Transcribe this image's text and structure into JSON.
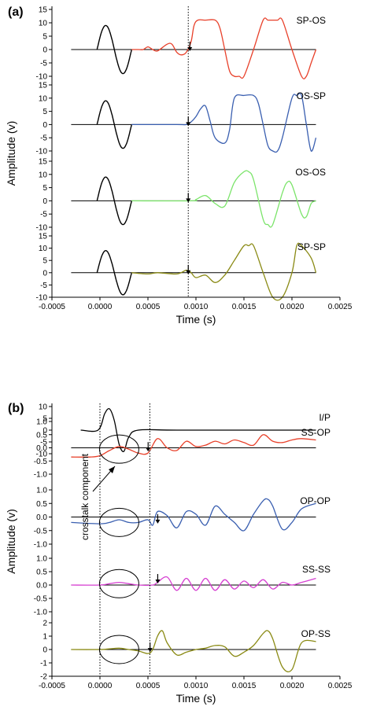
{
  "chart_data": [
    {
      "type": "line",
      "panel": "(a)",
      "xlabel": "Time (s)",
      "ylabel": "Amplitude (v)",
      "xlim": [
        -0.0005,
        0.0025
      ],
      "x_ticks": [
        "-0.0005",
        "0.0000",
        "0.0005",
        "0.0010",
        "0.0015",
        "0.0020",
        "0.0025"
      ],
      "marker_time": 0.00092,
      "subplots": [
        {
          "label": "SP-OS",
          "color": "#e8402a",
          "ylim": [
            -10,
            15
          ],
          "y_ticks": [
            "15",
            "10",
            "5",
            "0",
            "-5",
            "-10"
          ],
          "input_pulse": {
            "start": -3e-05,
            "end": 0.00033,
            "peak": 9,
            "trough": -9
          },
          "x": [
            -0.0003,
            0.00033,
            0.0004,
            0.00045,
            0.0005,
            0.00055,
            0.0006,
            0.0007,
            0.00075,
            0.0008,
            0.00085,
            0.0009,
            0.00095,
            0.00098,
            0.00102,
            0.0011,
            0.0012,
            0.00125,
            0.0013,
            0.00135,
            0.0014,
            0.00145,
            0.0015,
            0.0016,
            0.0017,
            0.00175,
            0.0018,
            0.00185,
            0.0019,
            0.002,
            0.0021,
            0.00215,
            0.0022,
            0.00225
          ],
          "y": [
            0,
            0,
            0,
            0,
            1,
            0,
            -0.5,
            2,
            2,
            -1,
            -2,
            -1,
            3,
            9,
            11,
            11,
            11,
            8,
            0,
            -8,
            -10,
            -10,
            -10,
            0,
            11,
            11,
            11,
            11,
            11,
            0,
            -10,
            -10,
            -5,
            0
          ]
        },
        {
          "label": "OS-SP",
          "color": "#3a5fb0",
          "ylim": [
            -10,
            15
          ],
          "y_ticks": [
            "15",
            "10",
            "5",
            "0",
            "-5",
            "-10"
          ],
          "input_pulse": {
            "start": -3e-05,
            "end": 0.00033,
            "peak": 9,
            "trough": -9
          },
          "x": [
            -0.0003,
            0.00033,
            0.0008,
            0.0009,
            0.00095,
            0.001,
            0.00105,
            0.0011,
            0.00115,
            0.0012,
            0.0013,
            0.00135,
            0.0014,
            0.0015,
            0.0016,
            0.00165,
            0.0017,
            0.00175,
            0.0018,
            0.00185,
            0.0019,
            0.002,
            0.00205,
            0.0021,
            0.00215,
            0.0022,
            0.00225
          ],
          "y": [
            0,
            0,
            0,
            0,
            1,
            3,
            6,
            7,
            1,
            -5,
            -7,
            -2,
            10,
            11,
            11,
            8,
            0,
            -8,
            -10,
            -10,
            -5,
            10,
            11,
            11,
            0,
            -10,
            -5
          ]
        },
        {
          "label": "OS-OS",
          "color": "#7be46a",
          "ylim": [
            -10,
            15
          ],
          "y_ticks": [
            "15",
            "10",
            "5",
            "0",
            "-5",
            "-10"
          ],
          "input_pulse": {
            "start": -3e-05,
            "end": 0.00033,
            "peak": 9,
            "trough": -9
          },
          "x": [
            -0.0003,
            0.00033,
            0.00095,
            0.001,
            0.0011,
            0.0012,
            0.0013,
            0.0014,
            0.0015,
            0.00155,
            0.0016,
            0.0017,
            0.00175,
            0.0018,
            0.0019,
            0.00195,
            0.002,
            0.0021,
            0.00215,
            0.0022,
            0.00225
          ],
          "y": [
            0,
            0,
            0,
            0.5,
            2,
            -1,
            -2,
            7,
            11,
            11,
            8,
            -7,
            -9,
            -9,
            3,
            7,
            6,
            -5,
            -6,
            -1,
            0
          ]
        },
        {
          "label": "SP-SP",
          "color": "#8a8a14",
          "ylim": [
            -10,
            15
          ],
          "y_ticks": [
            "15",
            "10",
            "5",
            "0",
            "-5",
            "-10"
          ],
          "input_pulse": {
            "start": -3e-05,
            "end": 0.00033,
            "peak": 9,
            "trough": -9
          },
          "x": [
            -0.0003,
            0.00033,
            0.0005,
            0.0006,
            0.0008,
            0.0009,
            0.00095,
            0.001,
            0.0011,
            0.0012,
            0.0013,
            0.0014,
            0.0015,
            0.00155,
            0.0016,
            0.0017,
            0.0018,
            0.0019,
            0.002,
            0.00205,
            0.0021,
            0.0022,
            0.00225
          ],
          "y": [
            0,
            0,
            -0.5,
            0,
            -0.5,
            1,
            0,
            -2,
            -1,
            -4,
            -1,
            5,
            11,
            11,
            11,
            0,
            -10,
            -10,
            0,
            11,
            11,
            6,
            0
          ]
        }
      ]
    },
    {
      "type": "line",
      "panel": "(b)",
      "xlabel": "Time (s)",
      "ylabel": "Amplitude (v)",
      "xlim": [
        -0.0005,
        0.0025
      ],
      "x_ticks": [
        "-0.0005",
        "0.0000",
        "0.0005",
        "0.0010",
        "0.0015",
        "0.0020",
        "0.0025"
      ],
      "marker_times": [
        0.0,
        0.00052
      ],
      "annotation": "crosstalk component",
      "subplots": [
        {
          "label": "I/P",
          "color": "#000000",
          "ylim": [
            -10,
            10
          ],
          "y_ticks": [
            "10",
            "5",
            "0",
            "-5",
            "-10"
          ],
          "x": [
            -0.0002,
            -2e-05,
            5e-05,
            0.0001,
            0.00015,
            0.0002,
            0.00025,
            0.0003,
            0.0004,
            0.0008,
            0.0018,
            0.00225
          ],
          "y": [
            0,
            0,
            7,
            9,
            4,
            -6,
            -9,
            -3,
            0,
            0,
            0,
            0
          ]
        },
        {
          "label": "SS-OP",
          "color": "#e8402a",
          "ylim": [
            -1.0,
            1.0
          ],
          "y_ticks": [
            "1.0",
            "0.5",
            "0.0",
            "-0.5",
            "-1.0"
          ],
          "x": [
            -0.0003,
            -0.0001,
            0.0,
            0.0001,
            0.0002,
            0.0003,
            0.0004,
            0.0005,
            0.0006,
            0.0007,
            0.0008,
            0.0009,
            0.001,
            0.0011,
            0.0012,
            0.0013,
            0.0014,
            0.0015,
            0.0016,
            0.0017,
            0.0018,
            0.0019,
            0.002,
            0.0021,
            0.00225
          ],
          "y": [
            -0.35,
            -0.35,
            -0.3,
            -0.1,
            0.05,
            -0.05,
            -0.2,
            -0.2,
            0.35,
            0.0,
            -0.1,
            0.25,
            0.05,
            0.1,
            0.25,
            0.15,
            0.3,
            0.2,
            0.1,
            0.5,
            0.25,
            0.2,
            0.3,
            0.35,
            0.3
          ]
        },
        {
          "label": "OP-OP",
          "color": "#3a5fb0",
          "ylim": [
            -1.0,
            1.0
          ],
          "y_ticks": [
            "1.0",
            "0.5",
            "0.0",
            "-0.5",
            "-1.0"
          ],
          "x": [
            -0.0003,
            0.0,
            0.0001,
            0.0002,
            0.0003,
            0.0004,
            0.0005,
            0.00055,
            0.0006,
            0.0007,
            0.0008,
            0.0009,
            0.001,
            0.0011,
            0.0012,
            0.0013,
            0.0014,
            0.0015,
            0.0016,
            0.0017,
            0.00175,
            0.0018,
            0.0019,
            0.002,
            0.0021,
            0.00225
          ],
          "y": [
            -0.2,
            -0.25,
            -0.2,
            -0.1,
            -0.2,
            -0.2,
            -0.1,
            -0.3,
            0.2,
            0.05,
            -0.4,
            0.2,
            0.1,
            -0.3,
            0.4,
            0.1,
            -0.2,
            -0.5,
            0.1,
            0.6,
            0.65,
            0.4,
            -0.45,
            -0.2,
            0.3,
            0.5
          ]
        },
        {
          "label": "SS-SS",
          "color": "#d63fd1",
          "ylim": [
            -1.0,
            1.0
          ],
          "y_ticks": [
            "1.0",
            "0.5",
            "0.0",
            "-0.5",
            "-1.0"
          ],
          "x": [
            -0.0003,
            0.0,
            0.0001,
            0.0002,
            0.0003,
            0.0004,
            0.00055,
            0.0006,
            0.0007,
            0.0008,
            0.0009,
            0.001,
            0.0011,
            0.0012,
            0.0013,
            0.0014,
            0.0015,
            0.0016,
            0.0017,
            0.0018,
            0.0019,
            0.002,
            0.0021,
            0.0022,
            0.00225
          ],
          "y": [
            0.0,
            0.0,
            0.05,
            0.1,
            0.05,
            0.0,
            0.0,
            0.1,
            0.3,
            -0.2,
            0.25,
            -0.2,
            0.25,
            -0.2,
            0.2,
            -0.15,
            0.15,
            -0.1,
            0.2,
            -0.15,
            0.1,
            0.0,
            0.1,
            0.2,
            0.25
          ]
        },
        {
          "label": "OP-SS",
          "color": "#8a8a14",
          "ylim": [
            -2,
            2
          ],
          "y_ticks": [
            "2",
            "1",
            "0",
            "-1",
            "-2"
          ],
          "x": [
            -0.0003,
            0.0,
            0.0001,
            0.0002,
            0.0003,
            0.0004,
            0.0005,
            0.00055,
            0.0006,
            0.00065,
            0.0007,
            0.0008,
            0.0009,
            0.001,
            0.0011,
            0.0012,
            0.0013,
            0.0014,
            0.0015,
            0.0016,
            0.0017,
            0.00175,
            0.0018,
            0.0019,
            0.002,
            0.0021,
            0.00225
          ],
          "y": [
            0.0,
            0.0,
            0.05,
            0.1,
            0.0,
            -0.1,
            -0.3,
            0.0,
            1.0,
            1.4,
            0.5,
            -0.4,
            -0.2,
            0.0,
            0.1,
            0.3,
            0.2,
            -0.5,
            -0.2,
            0.3,
            1.2,
            1.4,
            0.8,
            -1.3,
            -1.5,
            0.5,
            0.6
          ]
        }
      ]
    }
  ]
}
